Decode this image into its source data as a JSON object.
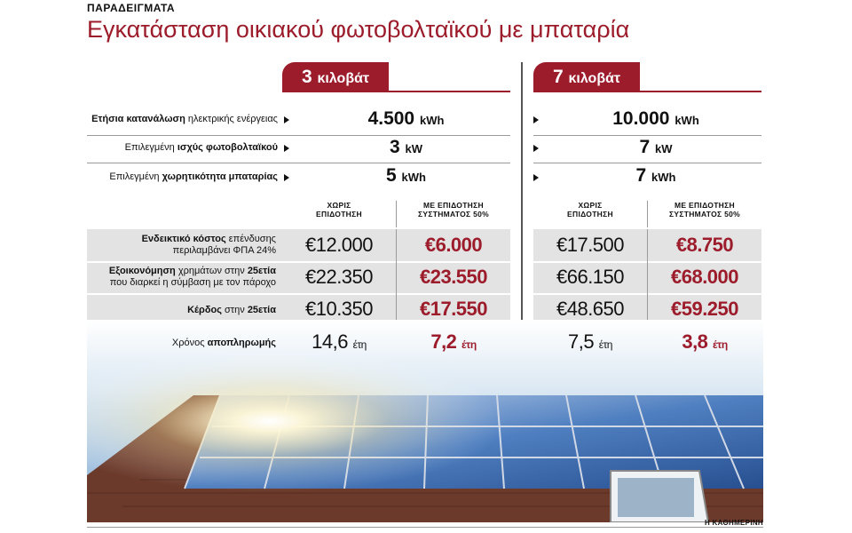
{
  "kicker": "ΠΑΡΑΔΕΙΓΜΑΤΑ",
  "title": "Εγκατάσταση οικιακού φωτοβολταϊκού με μπαταρία",
  "columns": [
    {
      "head_num": "3",
      "head_unit": "κιλοβάτ"
    },
    {
      "head_num": "7",
      "head_unit": "κιλοβάτ"
    }
  ],
  "rows_top": [
    {
      "label_bold": "Ετήσια κατανάλωση",
      "label_rest": " ηλεκτρικής ενέργειας",
      "v1": "4.500",
      "u1": "kWh",
      "v2": "10.000",
      "u2": "kWh"
    },
    {
      "label_pre": "Επιλεγμένη ",
      "label_bold": "ισχύς φωτοβολταϊκού",
      "v1": "3",
      "u1": "kW",
      "v2": "7",
      "u2": "kW"
    },
    {
      "label_pre": "Επιλεγμένη ",
      "label_bold": "χωρητικότητα μπαταρίας",
      "v1": "5",
      "u1": "kWh",
      "v2": "7",
      "u2": "kWh"
    }
  ],
  "subheads": {
    "without_1": "ΧΩΡΙΣ",
    "without_2": "ΕΠΙΔΟΤΗΣΗ",
    "with_1": "ΜΕ ΕΠΙΔΟΤΗΣΗ",
    "with_2": "ΣΥΣΤΗΜΑΤΟΣ 50%"
  },
  "rows_money": [
    {
      "l1_bold": "Ενδεικτικό κόστος",
      "l1_rest": " επένδυσης",
      "l2": "περιλαμβάνει ΦΠΑ 24%",
      "a": "€12.000",
      "b": "€6.000",
      "c": "€17.500",
      "d": "€8.750"
    },
    {
      "l1_bold": "Εξοικονόμηση",
      "l1_rest": " χρημάτων στην ",
      "l1_bold2": "25ετία",
      "l2": "που διαρκεί η σύμβαση με τον πάροχο",
      "a": "€22.350",
      "b": "€23.550",
      "c": "€66.150",
      "d": "€68.000"
    },
    {
      "l1_bold": "Κέρδος",
      "l1_rest": " στην ",
      "l1_bold2": "25ετία",
      "a": "€10.350",
      "b": "€17.550",
      "c": "€48.650",
      "d": "€59.250"
    },
    {
      "l1_pre": "Χρόνος ",
      "l1_bold": "αποπληρωμής",
      "a": "14,6",
      "b": "7,2",
      "c": "7,5",
      "d": "3,8",
      "unit": "έτη"
    }
  ],
  "credit": "Η ΚΑΘΗΜΕΡΙΝΗ",
  "colors": {
    "accent": "#9c1c2b",
    "shade": "#e3e3e3"
  }
}
